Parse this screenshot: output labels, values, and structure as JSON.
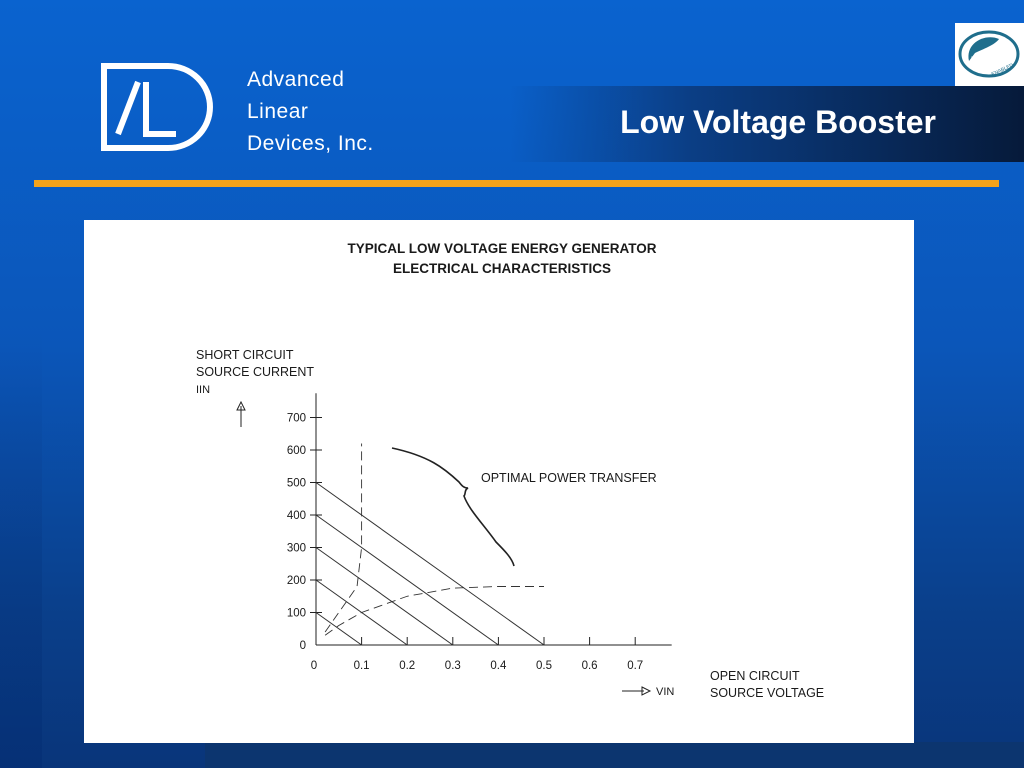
{
  "header": {
    "company_line1": "Advanced",
    "company_line2": "Linear",
    "company_line3": "Devices, Inc.",
    "title": "Low Voltage Booster",
    "badge_text": "EPAD",
    "badge_subtext": "ENABLED"
  },
  "colors": {
    "background": "#0a5bc4",
    "accent_line": "#f5a31a",
    "panel": "#ffffff"
  },
  "chart_data": {
    "type": "line",
    "title": "TYPICAL LOW VOLTAGE ENERGY GENERATOR",
    "subtitle": "ELECTRICAL CHARACTERISTICS",
    "ylabel_lines": [
      "SHORT CIRCUIT",
      "SOURCE CURRENT",
      "IIN"
    ],
    "xlabel_lines": [
      "OPEN CIRCUIT",
      "SOURCE VOLTAGE"
    ],
    "x_axis_symbol": "VIN",
    "xlim": [
      0,
      0.8
    ],
    "ylim": [
      0,
      750
    ],
    "x_ticks": [
      "0",
      "0.1",
      "0.2",
      "0.3",
      "0.4",
      "0.5",
      "0.6",
      "0.7"
    ],
    "y_ticks": [
      "0",
      "100",
      "200",
      "300",
      "400",
      "500",
      "600",
      "700"
    ],
    "annotation": "OPTIMAL POWER TRANSFER",
    "series": [
      {
        "style": "solid",
        "x": [
          0,
          0.1
        ],
        "y": [
          100,
          0
        ]
      },
      {
        "style": "solid",
        "x": [
          0,
          0.2
        ],
        "y": [
          200,
          0
        ]
      },
      {
        "style": "solid",
        "x": [
          0,
          0.3
        ],
        "y": [
          300,
          0
        ]
      },
      {
        "style": "solid",
        "x": [
          0,
          0.4
        ],
        "y": [
          400,
          0
        ]
      },
      {
        "style": "solid",
        "x": [
          0,
          0.5
        ],
        "y": [
          500,
          0
        ]
      },
      {
        "style": "dashed",
        "x": [
          0.02,
          0.05,
          0.1,
          0.2,
          0.3,
          0.4,
          0.5
        ],
        "y": [
          30,
          60,
          100,
          150,
          175,
          180,
          180
        ]
      },
      {
        "style": "dashed",
        "x": [
          0.02,
          0.06,
          0.09,
          0.1,
          0.1
        ],
        "y": [
          40,
          120,
          180,
          300,
          620
        ]
      }
    ]
  }
}
